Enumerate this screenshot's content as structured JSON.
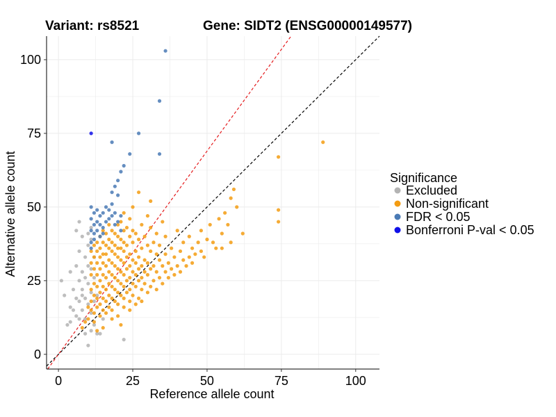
{
  "titles": {
    "variant": "Variant: rs8521",
    "gene": "Gene: SIDT2 (ENSG00000149577)"
  },
  "chart_data": {
    "type": "scatter",
    "xlabel": "Reference allele count",
    "ylabel": "Alternative allele count",
    "xlim": [
      -4,
      108
    ],
    "ylim": [
      -5,
      108
    ],
    "xticks": [
      0,
      25,
      50,
      75,
      100
    ],
    "yticks": [
      0,
      25,
      50,
      75,
      100
    ],
    "grid": true,
    "reference_lines": [
      {
        "name": "y = x",
        "slope": 1.0,
        "color": "#000000",
        "style": "dashed"
      },
      {
        "name": "steeper line",
        "slope": 1.38,
        "color": "#e41a1c",
        "style": "dashed"
      }
    ],
    "legend": {
      "title": "Significance",
      "position": "right",
      "items": [
        {
          "label": "Excluded",
          "color": "#b3b3b3"
        },
        {
          "label": "Non-significant",
          "color": "#f39c12"
        },
        {
          "label": "FDR < 0.05",
          "color": "#4a7ab5"
        },
        {
          "label": "Bonferroni P-val < 0.05",
          "color": "#1010e8"
        }
      ]
    },
    "series": [
      {
        "name": "Excluded",
        "color": "#b3b3b3",
        "points": [
          [
            1,
            25
          ],
          [
            2,
            20
          ],
          [
            3,
            10
          ],
          [
            4,
            16
          ],
          [
            4,
            28
          ],
          [
            4,
            11
          ],
          [
            5,
            22
          ],
          [
            5,
            15
          ],
          [
            6,
            30
          ],
          [
            6,
            19
          ],
          [
            6,
            13
          ],
          [
            7,
            18
          ],
          [
            7,
            35
          ],
          [
            7,
            25
          ],
          [
            7,
            12
          ],
          [
            8,
            22
          ],
          [
            8,
            40
          ],
          [
            8,
            28
          ],
          [
            8,
            15
          ],
          [
            8,
            20
          ],
          [
            9,
            26
          ],
          [
            9,
            33
          ],
          [
            9,
            19
          ],
          [
            9,
            12
          ],
          [
            9,
            7
          ],
          [
            10,
            3
          ],
          [
            10,
            30
          ],
          [
            10,
            24
          ],
          [
            10,
            17
          ],
          [
            10,
            37
          ],
          [
            11,
            8
          ],
          [
            11,
            43
          ],
          [
            11,
            21
          ],
          [
            11,
            29
          ],
          [
            11,
            14
          ],
          [
            12,
            26
          ],
          [
            12,
            18
          ],
          [
            12,
            33
          ],
          [
            12,
            10
          ],
          [
            13,
            20
          ],
          [
            13,
            7
          ],
          [
            14,
            7
          ],
          [
            15,
            12
          ],
          [
            22,
            5
          ],
          [
            6,
            42
          ],
          [
            7,
            45
          ],
          [
            10,
            41
          ],
          [
            11,
            39
          ]
        ]
      },
      {
        "name": "Non-significant",
        "color": "#f39c12",
        "points": [
          [
            10,
            12
          ],
          [
            11,
            15
          ],
          [
            11,
            18
          ],
          [
            11,
            22
          ],
          [
            11,
            27
          ],
          [
            11,
            31
          ],
          [
            11,
            35
          ],
          [
            12,
            14
          ],
          [
            12,
            20
          ],
          [
            12,
            24
          ],
          [
            12,
            29
          ],
          [
            12,
            33
          ],
          [
            12,
            37
          ],
          [
            13,
            16
          ],
          [
            13,
            19
          ],
          [
            13,
            23
          ],
          [
            13,
            27
          ],
          [
            13,
            31
          ],
          [
            13,
            35
          ],
          [
            13,
            38
          ],
          [
            14,
            17
          ],
          [
            14,
            21
          ],
          [
            14,
            25
          ],
          [
            14,
            29
          ],
          [
            14,
            33
          ],
          [
            14,
            36
          ],
          [
            14,
            40
          ],
          [
            15,
            15
          ],
          [
            15,
            19
          ],
          [
            15,
            23
          ],
          [
            15,
            27
          ],
          [
            15,
            31
          ],
          [
            15,
            34
          ],
          [
            15,
            38
          ],
          [
            15,
            42
          ],
          [
            16,
            18
          ],
          [
            16,
            22
          ],
          [
            16,
            26
          ],
          [
            16,
            30
          ],
          [
            16,
            34
          ],
          [
            16,
            37
          ],
          [
            16,
            41
          ],
          [
            17,
            16
          ],
          [
            17,
            20
          ],
          [
            17,
            24
          ],
          [
            17,
            28
          ],
          [
            17,
            32
          ],
          [
            17,
            36
          ],
          [
            17,
            39
          ],
          [
            17,
            44
          ],
          [
            18,
            19
          ],
          [
            18,
            23
          ],
          [
            18,
            27
          ],
          [
            18,
            31
          ],
          [
            18,
            35
          ],
          [
            18,
            38
          ],
          [
            18,
            42
          ],
          [
            19,
            18
          ],
          [
            19,
            22
          ],
          [
            19,
            26
          ],
          [
            19,
            30
          ],
          [
            19,
            34
          ],
          [
            19,
            37
          ],
          [
            19,
            41
          ],
          [
            20,
            17
          ],
          [
            20,
            21
          ],
          [
            20,
            25
          ],
          [
            20,
            29
          ],
          [
            20,
            33
          ],
          [
            20,
            36
          ],
          [
            20,
            40
          ],
          [
            20,
            44
          ],
          [
            21,
            20
          ],
          [
            21,
            24
          ],
          [
            21,
            28
          ],
          [
            21,
            32
          ],
          [
            21,
            36
          ],
          [
            21,
            39
          ],
          [
            21,
            45
          ],
          [
            22,
            19
          ],
          [
            22,
            23
          ],
          [
            22,
            27
          ],
          [
            22,
            31
          ],
          [
            22,
            35
          ],
          [
            22,
            38
          ],
          [
            22,
            42
          ],
          [
            23,
            21
          ],
          [
            23,
            25
          ],
          [
            23,
            29
          ],
          [
            23,
            33
          ],
          [
            23,
            37
          ],
          [
            23,
            43
          ],
          [
            24,
            18
          ],
          [
            24,
            22
          ],
          [
            24,
            26
          ],
          [
            24,
            30
          ],
          [
            24,
            34
          ],
          [
            24,
            40
          ],
          [
            24,
            46
          ],
          [
            25,
            20
          ],
          [
            25,
            24
          ],
          [
            25,
            28
          ],
          [
            25,
            32
          ],
          [
            25,
            38
          ],
          [
            25,
            42
          ],
          [
            26,
            23
          ],
          [
            26,
            27
          ],
          [
            26,
            31
          ],
          [
            26,
            35
          ],
          [
            26,
            41
          ],
          [
            27,
            19
          ],
          [
            27,
            25
          ],
          [
            27,
            29
          ],
          [
            27,
            33
          ],
          [
            27,
            39
          ],
          [
            28,
            22
          ],
          [
            28,
            26
          ],
          [
            28,
            30
          ],
          [
            28,
            36
          ],
          [
            28,
            44
          ],
          [
            29,
            24
          ],
          [
            29,
            28
          ],
          [
            29,
            32
          ],
          [
            29,
            40
          ],
          [
            30,
            21
          ],
          [
            30,
            27
          ],
          [
            30,
            31
          ],
          [
            30,
            37
          ],
          [
            30,
            47
          ],
          [
            31,
            23
          ],
          [
            31,
            29
          ],
          [
            31,
            35
          ],
          [
            31,
            43
          ],
          [
            32,
            25
          ],
          [
            32,
            30
          ],
          [
            32,
            38
          ],
          [
            33,
            22
          ],
          [
            33,
            28
          ],
          [
            33,
            34
          ],
          [
            33,
            41
          ],
          [
            34,
            26
          ],
          [
            34,
            32
          ],
          [
            34,
            37
          ],
          [
            35,
            24
          ],
          [
            35,
            30
          ],
          [
            35,
            45
          ],
          [
            36,
            28
          ],
          [
            36,
            34
          ],
          [
            36,
            40
          ],
          [
            37,
            26
          ],
          [
            37,
            31
          ],
          [
            38,
            29
          ],
          [
            38,
            36
          ],
          [
            39,
            27
          ],
          [
            39,
            33
          ],
          [
            40,
            30
          ],
          [
            40,
            42
          ],
          [
            41,
            28
          ],
          [
            41,
            35
          ],
          [
            42,
            32
          ],
          [
            42,
            38
          ],
          [
            43,
            30
          ],
          [
            44,
            33
          ],
          [
            44,
            40
          ],
          [
            45,
            31
          ],
          [
            45,
            36
          ],
          [
            46,
            34
          ],
          [
            47,
            38
          ],
          [
            48,
            35
          ],
          [
            48,
            42
          ],
          [
            49,
            33
          ],
          [
            50,
            39
          ],
          [
            51,
            44
          ],
          [
            52,
            38
          ],
          [
            53,
            36
          ],
          [
            54,
            46
          ],
          [
            55,
            41
          ],
          [
            56,
            48
          ],
          [
            57,
            44
          ],
          [
            58,
            53
          ],
          [
            59,
            56
          ],
          [
            60,
            50
          ],
          [
            62,
            41
          ],
          [
            58,
            38
          ],
          [
            55,
            36
          ],
          [
            27,
            55
          ],
          [
            31,
            52
          ],
          [
            25,
            50
          ],
          [
            22,
            48
          ],
          [
            74,
            67
          ],
          [
            74,
            49
          ],
          [
            74,
            45
          ],
          [
            89,
            72
          ],
          [
            8,
            9
          ],
          [
            9,
            11
          ],
          [
            10,
            16
          ],
          [
            12,
            11
          ],
          [
            14,
            13
          ],
          [
            16,
            14
          ],
          [
            18,
            15
          ],
          [
            20,
            13
          ],
          [
            22,
            16
          ],
          [
            24,
            15
          ],
          [
            26,
            17
          ],
          [
            28,
            18
          ],
          [
            21,
            10
          ],
          [
            18,
            12
          ],
          [
            15,
            9
          ],
          [
            13,
            8
          ]
        ]
      },
      {
        "name": "FDR < 0.05",
        "color": "#4a7ab5",
        "points": [
          [
            36,
            103
          ],
          [
            34,
            86
          ],
          [
            27,
            75
          ],
          [
            18,
            72
          ],
          [
            24,
            68
          ],
          [
            34,
            68
          ],
          [
            22,
            64
          ],
          [
            21,
            62
          ],
          [
            20,
            59
          ],
          [
            19,
            57
          ],
          [
            20,
            54
          ],
          [
            18,
            55
          ],
          [
            11,
            50
          ],
          [
            12,
            48
          ],
          [
            13,
            49
          ],
          [
            14,
            47
          ],
          [
            15,
            48
          ],
          [
            16,
            50
          ],
          [
            17,
            49
          ],
          [
            17,
            46
          ],
          [
            18,
            47
          ],
          [
            18,
            51
          ],
          [
            19,
            44
          ],
          [
            19,
            48
          ],
          [
            20,
            45
          ],
          [
            21,
            47
          ],
          [
            21,
            42
          ],
          [
            11,
            46
          ],
          [
            12,
            44
          ],
          [
            13,
            45
          ],
          [
            14,
            44
          ],
          [
            15,
            43
          ],
          [
            16,
            45
          ],
          [
            11,
            42
          ],
          [
            12,
            41
          ],
          [
            13,
            42
          ],
          [
            14,
            40
          ],
          [
            11,
            38
          ],
          [
            12,
            39
          ],
          [
            11,
            36
          ],
          [
            15,
            41
          ]
        ]
      },
      {
        "name": "Bonferroni P-val < 0.05",
        "color": "#1010e8",
        "points": [
          [
            11,
            75
          ]
        ]
      }
    ]
  }
}
